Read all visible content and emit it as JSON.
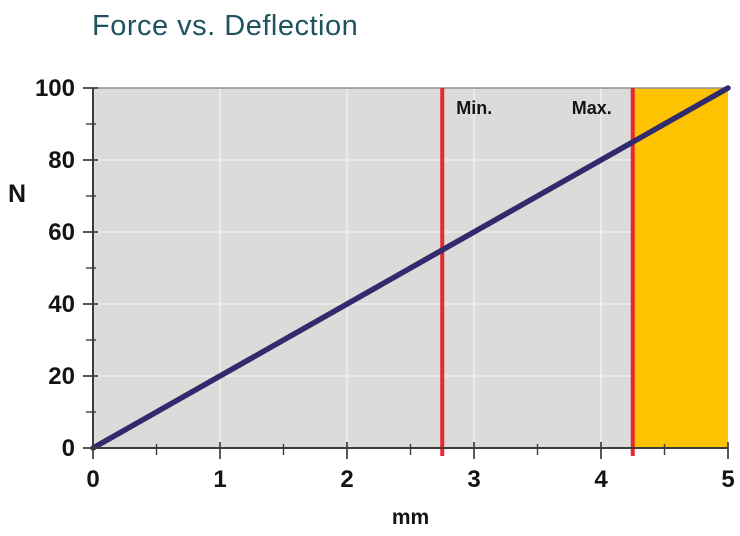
{
  "page": {
    "background": "#ffffff"
  },
  "chart_data": {
    "type": "line",
    "title": "Force vs. Deflection",
    "xlabel": "mm",
    "ylabel": "N",
    "xlim": [
      0,
      5
    ],
    "ylim": [
      0,
      100
    ],
    "x_major_ticks": [
      0,
      1,
      2,
      3,
      4,
      5
    ],
    "x_minor_interval": 0.5,
    "y_major_ticks": [
      0,
      20,
      40,
      60,
      80,
      100
    ],
    "y_minor_interval": 10,
    "grid": true,
    "legend": "none",
    "series": [
      {
        "name": "force-deflection-line",
        "x": [
          0,
          5
        ],
        "y": [
          0,
          100
        ],
        "color": "#312a6c",
        "width": 5.5
      }
    ],
    "vlines": [
      {
        "name": "min-line",
        "label": "Min.",
        "x": 2.75,
        "color": "#e52a30",
        "label_side": "right"
      },
      {
        "name": "max-line",
        "label": "Max.",
        "x": 4.25,
        "color": "#e52a30",
        "label_side": "left"
      }
    ],
    "regions": [
      {
        "name": "beyond-max-region",
        "from": 4.25,
        "to": 5.0,
        "color": "#fdc300"
      }
    ],
    "colors": {
      "plot_bg": "#dbdbd9",
      "grid": "#eeeeec",
      "axis": "#3c3c3c",
      "top_border": "#909090",
      "tick_label": "#141414",
      "title": "#1f5260"
    }
  }
}
